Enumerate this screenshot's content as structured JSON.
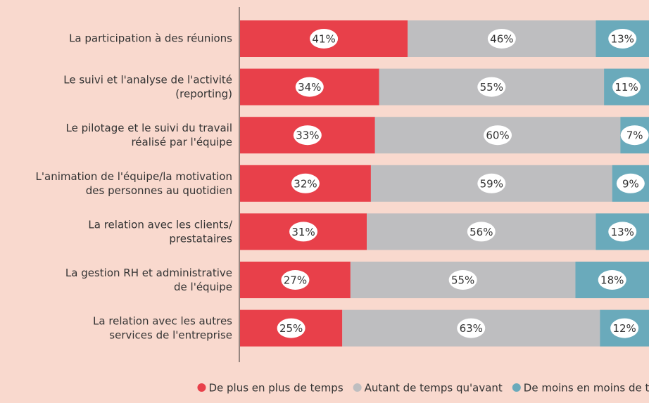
{
  "chart_data": {
    "type": "stacked-barh",
    "categories": [
      "La participation à des réunions",
      "Le suivi et l'analyse de l'activité\n(reporting)",
      "Le pilotage et le suivi du travail\nréalisé par l'équipe",
      "L'animation de l'équipe/la motivation\ndes personnes au quotidien",
      "La relation avec les clients/\nprestataires",
      "La gestion RH et administrative\nde l'équipe",
      "La relation avec les autres\nservices de l'entreprise"
    ],
    "series": [
      {
        "name": "De plus en plus de temps",
        "color": "#e8404a",
        "values": [
          41,
          34,
          33,
          32,
          31,
          27,
          25
        ],
        "value_labels": [
          "41%",
          "34%",
          "33%",
          "32%",
          "31%",
          "27%",
          "25%"
        ]
      },
      {
        "name": "Autant de temps qu'avant",
        "color": "#bebec0",
        "values": [
          46,
          55,
          60,
          59,
          56,
          55,
          63
        ],
        "value_labels": [
          "46%",
          "55%",
          "60%",
          "59%",
          "56%",
          "55%",
          "63%"
        ]
      },
      {
        "name": "De moins en moins de temps",
        "color": "#6aaabb",
        "values": [
          13,
          11,
          7,
          9,
          13,
          18,
          12
        ],
        "value_labels": [
          "13%",
          "11%",
          "7%",
          "9%",
          "13%",
          "18%",
          "12%"
        ]
      }
    ],
    "xlim": [
      0,
      100
    ],
    "legend": "bottom"
  }
}
